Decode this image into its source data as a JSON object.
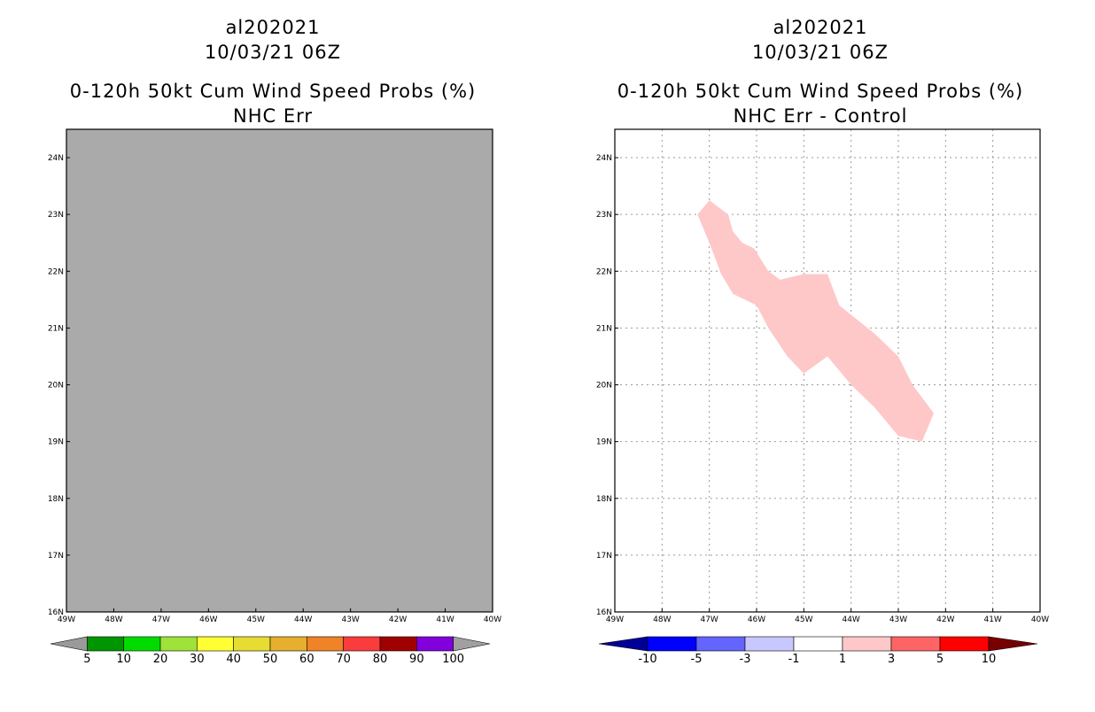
{
  "left_panel": {
    "title_lines": [
      "al202021",
      "10/03/21 06Z",
      "0-120h 50kt Cum Wind Speed Probs (%)",
      "NHC Err"
    ],
    "background_color": "#aaaaaa",
    "x_ticks": [
      "49W",
      "48W",
      "47W",
      "46W",
      "45W",
      "44W",
      "43W",
      "42W",
      "41W",
      "40W"
    ],
    "y_ticks": [
      "16N",
      "17N",
      "18N",
      "19N",
      "20N",
      "21N",
      "22N",
      "23N",
      "24N"
    ],
    "colorbar": {
      "colors": [
        "#9a9a9a",
        "#009600",
        "#00dc00",
        "#9ee23a",
        "#ffff32",
        "#e6dc32",
        "#e6af2d",
        "#f08228",
        "#fa3c3c",
        "#a00000",
        "#8200dc",
        "#a0a0a0"
      ],
      "labels": [
        "5",
        "10",
        "20",
        "30",
        "40",
        "50",
        "60",
        "70",
        "80",
        "90",
        "100"
      ]
    }
  },
  "right_panel": {
    "title_lines": [
      "al202021",
      "10/03/21 06Z",
      "0-120h 50kt Cum Wind Speed Probs (%)",
      "NHC Err - Control"
    ],
    "x_ticks": [
      "49W",
      "48W",
      "47W",
      "46W",
      "45W",
      "44W",
      "43W",
      "42W",
      "41W",
      "40W"
    ],
    "y_ticks": [
      "16N",
      "17N",
      "18N",
      "19N",
      "20N",
      "21N",
      "22N",
      "23N",
      "24N"
    ],
    "shaded_region": {
      "category": "1 to 3",
      "color": "#ffc8c8",
      "outline_lon_lat": [
        [
          -47.25,
          23.0
        ],
        [
          -47.0,
          23.25
        ],
        [
          -46.6,
          23.0
        ],
        [
          -46.5,
          22.7
        ],
        [
          -46.3,
          22.5
        ],
        [
          -46.05,
          22.4
        ],
        [
          -45.75,
          22.0
        ],
        [
          -45.5,
          21.85
        ],
        [
          -45.0,
          21.95
        ],
        [
          -44.5,
          21.95
        ],
        [
          -44.25,
          21.4
        ],
        [
          -43.5,
          20.9
        ],
        [
          -43.0,
          20.5
        ],
        [
          -42.7,
          20.0
        ],
        [
          -42.25,
          19.5
        ],
        [
          -42.5,
          19.0
        ],
        [
          -43.0,
          19.1
        ],
        [
          -43.5,
          19.6
        ],
        [
          -44.0,
          20.0
        ],
        [
          -44.5,
          20.5
        ],
        [
          -45.0,
          20.2
        ],
        [
          -45.35,
          20.5
        ],
        [
          -45.75,
          21.0
        ],
        [
          -46.0,
          21.4
        ],
        [
          -46.5,
          21.6
        ],
        [
          -46.75,
          21.95
        ],
        [
          -47.0,
          22.5
        ]
      ]
    },
    "colorbar": {
      "colors": [
        "#000096",
        "#0000ff",
        "#6464ff",
        "#c8c8ff",
        "#ffffff",
        "#ffc8c8",
        "#ff6464",
        "#ff0000",
        "#780000"
      ],
      "labels": [
        "-10",
        "-5",
        "-3",
        "-1",
        "1",
        "3",
        "5",
        "10"
      ]
    }
  }
}
